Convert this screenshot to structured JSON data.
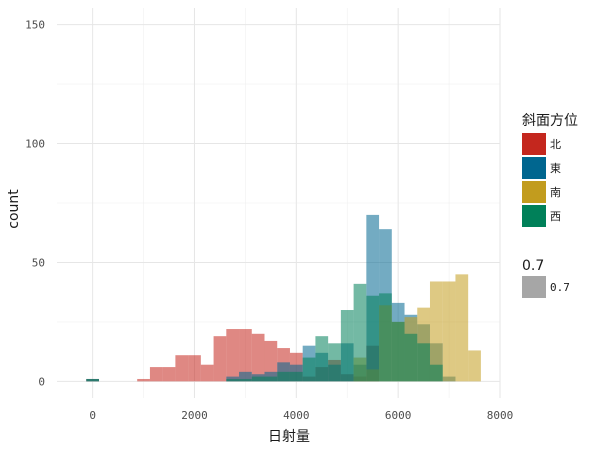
{
  "chart_data": {
    "type": "histogram",
    "xlabel": "日射量",
    "ylabel": "count",
    "xlim": [
      -700,
      8000
    ],
    "ylim": [
      -7,
      157
    ],
    "x_ticks": [
      0,
      2000,
      4000,
      6000,
      8000
    ],
    "x_tick_labels": [
      "0",
      "2000",
      "4000",
      "6000",
      "8000"
    ],
    "y_ticks": [
      0,
      50,
      100,
      150
    ],
    "y_tick_labels": [
      "0",
      "50",
      "100",
      "150"
    ],
    "grid": true,
    "bin_width": 250,
    "legend_position": "right",
    "legend_title": "斜面方位",
    "alpha_legend": {
      "title": "0.7",
      "label": "0.7",
      "color": "#a6a6a6"
    },
    "series": [
      {
        "name": "北",
        "color": "#C4271E",
        "bins": [
          {
            "x0": -125,
            "x1": 125,
            "count": 1
          },
          {
            "x0": 875,
            "x1": 1125,
            "count": 1
          },
          {
            "x0": 1125,
            "x1": 1375,
            "count": 6
          },
          {
            "x0": 1375,
            "x1": 1625,
            "count": 6
          },
          {
            "x0": 1625,
            "x1": 1875,
            "count": 11
          },
          {
            "x0": 1875,
            "x1": 2125,
            "count": 11
          },
          {
            "x0": 2125,
            "x1": 2375,
            "count": 7
          },
          {
            "x0": 2375,
            "x1": 2625,
            "count": 19
          },
          {
            "x0": 2625,
            "x1": 2875,
            "count": 22
          },
          {
            "x0": 2875,
            "x1": 3125,
            "count": 22
          },
          {
            "x0": 3125,
            "x1": 3375,
            "count": 20
          },
          {
            "x0": 3375,
            "x1": 3625,
            "count": 17
          },
          {
            "x0": 3625,
            "x1": 3875,
            "count": 14
          },
          {
            "x0": 3875,
            "x1": 4125,
            "count": 12
          },
          {
            "x0": 4125,
            "x1": 4375,
            "count": 2
          },
          {
            "x0": 4375,
            "x1": 4625,
            "count": 6
          },
          {
            "x0": 4625,
            "x1": 4875,
            "count": 9
          },
          {
            "x0": 4875,
            "x1": 5125,
            "count": 3
          },
          {
            "x0": 5125,
            "x1": 5375,
            "count": 2
          },
          {
            "x0": 5375,
            "x1": 5625,
            "count": 15
          },
          {
            "x0": 5625,
            "x1": 5875,
            "count": 0
          }
        ]
      },
      {
        "name": "東",
        "color": "#00668F",
        "bins": [
          {
            "x0": -125,
            "x1": 125,
            "count": 1
          },
          {
            "x0": 2625,
            "x1": 2875,
            "count": 2
          },
          {
            "x0": 2875,
            "x1": 3125,
            "count": 4
          },
          {
            "x0": 3125,
            "x1": 3375,
            "count": 3
          },
          {
            "x0": 3375,
            "x1": 3625,
            "count": 4
          },
          {
            "x0": 3625,
            "x1": 3875,
            "count": 8
          },
          {
            "x0": 3875,
            "x1": 4125,
            "count": 7
          },
          {
            "x0": 4125,
            "x1": 4375,
            "count": 15
          },
          {
            "x0": 4375,
            "x1": 4625,
            "count": 12
          },
          {
            "x0": 4625,
            "x1": 4875,
            "count": 7
          },
          {
            "x0": 4875,
            "x1": 5125,
            "count": 16
          },
          {
            "x0": 5125,
            "x1": 5375,
            "count": 7
          },
          {
            "x0": 5375,
            "x1": 5625,
            "count": 70
          },
          {
            "x0": 5625,
            "x1": 5875,
            "count": 64
          },
          {
            "x0": 5875,
            "x1": 6125,
            "count": 33
          },
          {
            "x0": 6125,
            "x1": 6375,
            "count": 28
          },
          {
            "x0": 6375,
            "x1": 6625,
            "count": 24
          },
          {
            "x0": 6625,
            "x1": 6875,
            "count": 16
          },
          {
            "x0": 6875,
            "x1": 7125,
            "count": 2
          }
        ]
      },
      {
        "name": "南",
        "color": "#C29C1E",
        "bins": [
          {
            "x0": 5125,
            "x1": 5375,
            "count": 10
          },
          {
            "x0": 5375,
            "x1": 5625,
            "count": 5
          },
          {
            "x0": 5625,
            "x1": 5875,
            "count": 32
          },
          {
            "x0": 5875,
            "x1": 6125,
            "count": 25
          },
          {
            "x0": 6125,
            "x1": 6375,
            "count": 27
          },
          {
            "x0": 6375,
            "x1": 6625,
            "count": 31
          },
          {
            "x0": 6625,
            "x1": 6875,
            "count": 42
          },
          {
            "x0": 6875,
            "x1": 7125,
            "count": 42
          },
          {
            "x0": 7125,
            "x1": 7375,
            "count": 45
          },
          {
            "x0": 7375,
            "x1": 7625,
            "count": 13
          }
        ]
      },
      {
        "name": "西",
        "color": "#008059",
        "bins": [
          {
            "x0": -125,
            "x1": 125,
            "count": 1
          },
          {
            "x0": 2625,
            "x1": 2875,
            "count": 1
          },
          {
            "x0": 2875,
            "x1": 3125,
            "count": 1
          },
          {
            "x0": 3125,
            "x1": 3375,
            "count": 2
          },
          {
            "x0": 3375,
            "x1": 3625,
            "count": 2
          },
          {
            "x0": 3625,
            "x1": 3875,
            "count": 4
          },
          {
            "x0": 3875,
            "x1": 4125,
            "count": 4
          },
          {
            "x0": 4125,
            "x1": 4375,
            "count": 10
          },
          {
            "x0": 4375,
            "x1": 4625,
            "count": 19
          },
          {
            "x0": 4625,
            "x1": 4875,
            "count": 16
          },
          {
            "x0": 4875,
            "x1": 5125,
            "count": 30
          },
          {
            "x0": 5125,
            "x1": 5375,
            "count": 41
          },
          {
            "x0": 5375,
            "x1": 5625,
            "count": 36
          },
          {
            "x0": 5625,
            "x1": 5875,
            "count": 37
          },
          {
            "x0": 5875,
            "x1": 6125,
            "count": 25
          },
          {
            "x0": 6125,
            "x1": 6375,
            "count": 20
          },
          {
            "x0": 6375,
            "x1": 6625,
            "count": 16
          },
          {
            "x0": 6625,
            "x1": 6875,
            "count": 7
          }
        ]
      }
    ]
  }
}
